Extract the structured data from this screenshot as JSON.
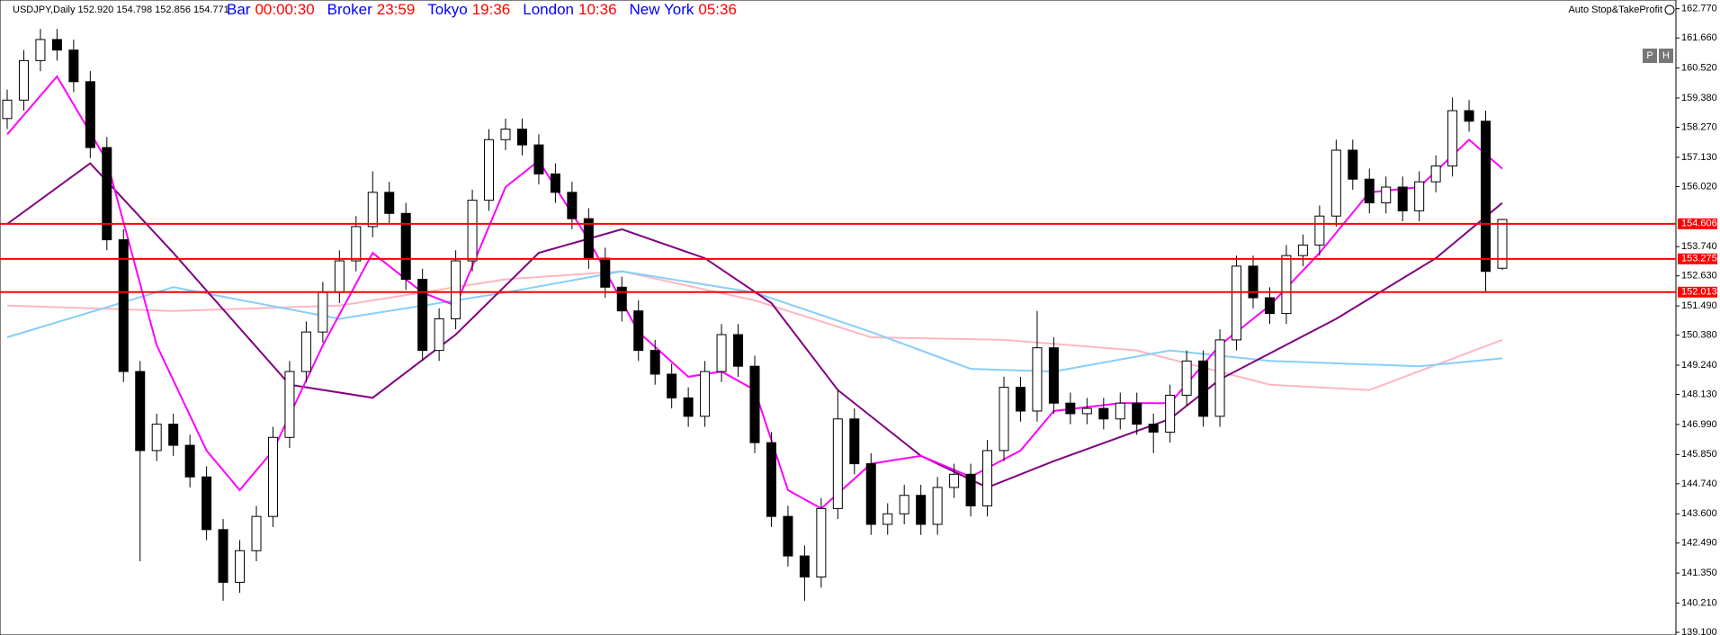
{
  "header": {
    "symbol": "USDJPY,Daily 152.920 154.798 152.856 154.771",
    "clocks": [
      {
        "label": "Bar",
        "time": "00:00:30"
      },
      {
        "label": "Broker",
        "time": "23:59"
      },
      {
        "label": "Tokyo",
        "time": "19:36"
      },
      {
        "label": "London",
        "time": "10:36"
      },
      {
        "label": "New York",
        "time": "05:36"
      }
    ],
    "expert": "Auto Stop&TakeProfit",
    "buttons": [
      "P",
      "H"
    ]
  },
  "chart_data": {
    "type": "candlestick",
    "open": [
      158.6,
      159.3,
      160.8,
      161.6,
      161.2,
      160.0,
      157.5,
      154.0,
      149.0,
      146.0,
      147.0,
      146.2,
      145.0,
      143.0,
      141.0,
      142.2,
      143.5,
      146.5,
      149.0,
      150.5,
      152.0,
      153.2,
      154.5,
      155.8,
      155.0,
      152.5,
      149.8,
      151.0,
      153.2,
      155.5,
      157.8,
      158.2,
      157.6,
      156.5,
      155.8,
      154.8,
      153.3,
      152.2,
      151.3,
      149.8,
      148.9,
      148.0,
      147.3,
      149.0,
      150.4,
      149.2,
      146.3,
      143.5,
      142.0,
      141.2,
      143.8,
      147.2,
      145.5,
      143.2,
      143.6,
      144.3,
      143.2,
      144.6,
      145.1,
      143.9,
      146.0,
      148.4,
      147.5,
      149.9,
      147.8,
      147.4,
      147.6,
      147.2,
      147.8,
      147.0,
      146.7,
      148.1,
      149.4,
      147.3,
      150.2,
      153.0,
      151.8,
      151.2,
      153.4,
      153.8,
      154.9,
      157.4,
      156.3,
      155.4,
      156.0,
      155.1,
      156.2,
      156.8,
      158.9,
      158.5,
      152.92
    ],
    "high": [
      159.7,
      161.2,
      162.0,
      162.0,
      161.6,
      160.4,
      157.9,
      154.4,
      149.4,
      147.4,
      147.4,
      146.6,
      145.4,
      143.4,
      142.6,
      143.9,
      146.9,
      149.4,
      150.9,
      152.4,
      153.6,
      154.9,
      156.6,
      156.2,
      155.4,
      152.9,
      151.4,
      153.6,
      155.9,
      158.2,
      158.6,
      158.6,
      158.0,
      156.9,
      156.2,
      155.2,
      153.7,
      152.6,
      151.7,
      150.2,
      149.3,
      148.4,
      149.4,
      150.8,
      150.8,
      149.6,
      146.7,
      143.9,
      142.4,
      144.2,
      148.3,
      147.6,
      145.9,
      144.0,
      144.7,
      144.7,
      145.0,
      145.5,
      145.5,
      146.4,
      148.8,
      148.8,
      151.3,
      150.3,
      148.2,
      148.0,
      148.0,
      148.2,
      148.2,
      147.4,
      148.5,
      149.8,
      149.8,
      150.6,
      153.4,
      153.4,
      152.2,
      153.8,
      154.2,
      155.3,
      157.8,
      157.8,
      156.7,
      156.4,
      156.4,
      156.6,
      157.2,
      159.4,
      159.3,
      158.9,
      154.798
    ],
    "low": [
      158.2,
      158.9,
      160.4,
      160.8,
      159.6,
      157.1,
      153.6,
      148.6,
      141.8,
      145.6,
      145.8,
      144.6,
      142.6,
      140.3,
      140.6,
      141.8,
      143.1,
      146.1,
      148.6,
      150.1,
      151.6,
      152.8,
      154.1,
      154.6,
      152.1,
      149.4,
      149.4,
      150.6,
      152.8,
      155.1,
      157.4,
      157.2,
      156.1,
      155.4,
      154.4,
      152.9,
      151.8,
      150.9,
      149.4,
      148.5,
      147.6,
      146.9,
      146.9,
      148.6,
      148.8,
      145.9,
      143.1,
      141.6,
      140.3,
      140.8,
      143.4,
      145.1,
      142.8,
      142.8,
      143.2,
      142.8,
      142.8,
      144.2,
      143.5,
      143.5,
      145.6,
      147.1,
      147.1,
      147.4,
      147.0,
      147.0,
      146.8,
      146.8,
      146.6,
      145.9,
      146.3,
      147.7,
      146.9,
      146.9,
      149.8,
      151.4,
      150.8,
      150.8,
      153.0,
      153.4,
      154.5,
      155.9,
      155.0,
      155.0,
      154.7,
      154.7,
      155.8,
      156.4,
      158.1,
      152.0,
      152.856
    ],
    "close": [
      159.3,
      160.8,
      161.6,
      161.2,
      160.0,
      157.5,
      154.0,
      149.0,
      146.0,
      147.0,
      146.2,
      145.0,
      143.0,
      141.0,
      142.2,
      143.5,
      146.5,
      149.0,
      150.5,
      152.0,
      153.2,
      154.5,
      155.8,
      155.0,
      152.5,
      149.8,
      151.0,
      153.2,
      155.5,
      157.8,
      158.2,
      157.6,
      156.5,
      155.8,
      154.8,
      153.3,
      152.2,
      151.3,
      149.8,
      148.9,
      148.0,
      147.3,
      149.0,
      150.4,
      149.2,
      146.3,
      143.5,
      142.0,
      141.2,
      143.8,
      147.2,
      145.5,
      143.2,
      143.6,
      144.3,
      143.2,
      144.6,
      145.1,
      143.9,
      146.0,
      148.4,
      147.5,
      149.9,
      147.8,
      147.4,
      147.6,
      147.2,
      147.8,
      147.0,
      146.7,
      148.1,
      149.4,
      147.3,
      150.2,
      153.0,
      151.8,
      151.2,
      153.4,
      153.8,
      154.9,
      157.4,
      156.3,
      155.4,
      156.0,
      155.1,
      156.2,
      156.8,
      158.9,
      158.5,
      152.8,
      154.771
    ],
    "lines": [
      {
        "color": "#ffb6c1",
        "x": [
          0,
          10,
          20,
          30,
          37,
          45,
          52,
          60,
          68,
          76,
          82,
          90
        ],
        "values": [
          151.5,
          151.3,
          151.5,
          152.5,
          152.8,
          151.7,
          150.3,
          150.2,
          149.8,
          148.5,
          148.3,
          150.2
        ]
      },
      {
        "color": "#87cefa",
        "x": [
          0,
          10,
          20,
          30,
          37,
          45,
          52,
          58,
          63,
          70,
          76,
          85,
          90
        ],
        "values": [
          150.3,
          152.2,
          151.0,
          152.0,
          152.8,
          152.0,
          150.5,
          149.1,
          149.0,
          149.8,
          149.4,
          149.2,
          149.5
        ]
      },
      {
        "color": "#800080",
        "x": [
          0,
          5,
          10,
          17,
          22,
          27,
          32,
          37,
          42,
          46,
          50,
          55,
          59,
          63,
          70,
          73,
          80,
          86,
          90
        ],
        "values": [
          154.6,
          156.9,
          153.5,
          148.5,
          148.0,
          150.4,
          153.5,
          154.4,
          153.3,
          151.6,
          148.3,
          145.8,
          144.6,
          145.6,
          147.2,
          148.7,
          151.0,
          153.3,
          155.4
        ]
      },
      {
        "color": "#ff00ff",
        "x": [
          0,
          3,
          6,
          9,
          12,
          14,
          16,
          19,
          22,
          25,
          27,
          30,
          32,
          35,
          38,
          41,
          43,
          45,
          47,
          49,
          52,
          55,
          58,
          61,
          63,
          67,
          70,
          73,
          76,
          79,
          82,
          85,
          88,
          90
        ],
        "values": [
          158.0,
          160.2,
          157.0,
          150.0,
          146.0,
          144.5,
          146.0,
          150.0,
          153.5,
          152.0,
          151.5,
          156.0,
          157.0,
          154.0,
          150.5,
          148.8,
          149.0,
          148.3,
          144.5,
          143.8,
          145.5,
          145.8,
          145.0,
          146.0,
          147.5,
          147.8,
          147.8,
          150.0,
          151.5,
          153.5,
          155.8,
          156.0,
          157.8,
          156.7
        ]
      }
    ],
    "hlines": [
      154.606,
      153.275,
      152.013
    ],
    "hline_color": "#ff0000",
    "ylim": [
      139.0,
      163.1
    ],
    "yticks": [
      {
        "value": 162.77,
        "label": "162.770"
      },
      {
        "value": 161.66,
        "label": "161.660"
      },
      {
        "value": 160.52,
        "label": "160.520"
      },
      {
        "value": 159.38,
        "label": "159.380"
      },
      {
        "value": 158.27,
        "label": "158.270"
      },
      {
        "value": 157.13,
        "label": "157.130"
      },
      {
        "value": 156.02,
        "label": "156.020"
      },
      {
        "value": 153.74,
        "label": "153.740"
      },
      {
        "value": 152.63,
        "label": "152.630"
      },
      {
        "value": 151.49,
        "label": "151.490"
      },
      {
        "value": 150.38,
        "label": "150.380"
      },
      {
        "value": 149.24,
        "label": "149.240"
      },
      {
        "value": 148.13,
        "label": "148.130"
      },
      {
        "value": 146.99,
        "label": "146.990"
      },
      {
        "value": 145.85,
        "label": "145.850"
      },
      {
        "value": 144.74,
        "label": "144.740"
      },
      {
        "value": 143.6,
        "label": "143.600"
      },
      {
        "value": 142.49,
        "label": "142.490"
      },
      {
        "value": 141.35,
        "label": "141.350"
      },
      {
        "value": 140.21,
        "label": "140.210"
      },
      {
        "value": 139.1,
        "label": "139.100"
      }
    ]
  }
}
